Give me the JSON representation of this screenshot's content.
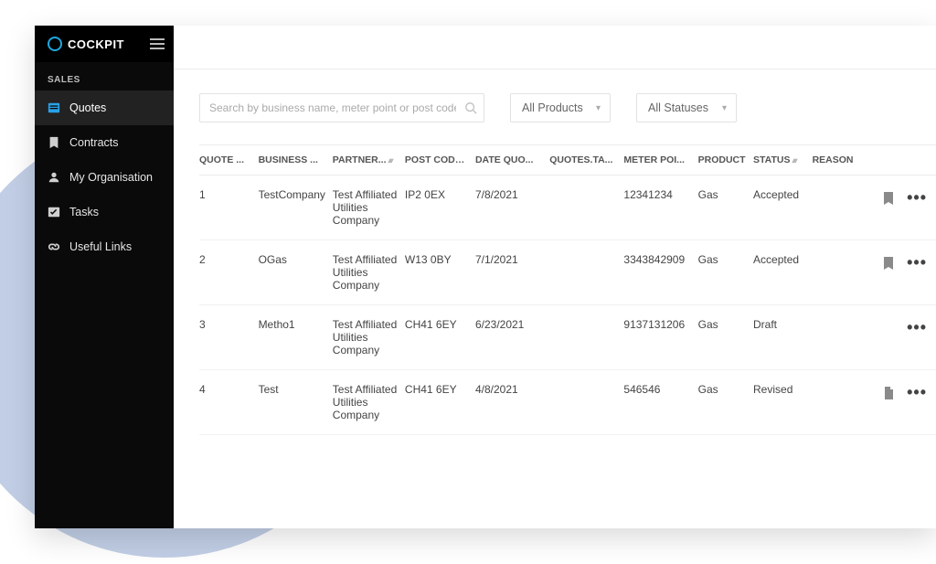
{
  "brand": {
    "name": "COCKPIT"
  },
  "sidebar": {
    "section": "SALES",
    "items": [
      {
        "label": "Quotes"
      },
      {
        "label": "Contracts"
      },
      {
        "label": "My Organisation"
      },
      {
        "label": "Tasks"
      },
      {
        "label": "Useful Links"
      }
    ]
  },
  "filters": {
    "search_placeholder": "Search by business name, meter point or post code",
    "product_selected": "All Products",
    "status_selected": "All Statuses"
  },
  "table": {
    "columns": [
      "QUOTE ...",
      "BUSINESS ...",
      "PARTNER...",
      "POST CODE...",
      "DATE QUO...",
      "QUOTES.TA...",
      "METER POI...",
      "PRODUCT",
      "STATUS",
      "REASON"
    ],
    "rows": [
      {
        "quote": "1",
        "business": "TestCompany",
        "partner": "Test Affiliated Utilities Company",
        "postcode": "IP2 0EX",
        "date": "7/8/2021",
        "tags": "",
        "meter": "12341234",
        "product": "Gas",
        "status": "Accepted",
        "reason": "",
        "bookmark": true,
        "file": false
      },
      {
        "quote": "2",
        "business": "OGas",
        "partner": "Test Affiliated Utilities Company",
        "postcode": "W13 0BY",
        "date": "7/1/2021",
        "tags": "",
        "meter": "3343842909",
        "product": "Gas",
        "status": "Accepted",
        "reason": "",
        "bookmark": true,
        "file": false
      },
      {
        "quote": "3",
        "business": "Metho1",
        "partner": "Test Affiliated Utilities Company",
        "postcode": "CH41 6EY",
        "date": "6/23/2021",
        "tags": "",
        "meter": "9137131206",
        "product": "Gas",
        "status": "Draft",
        "reason": "",
        "bookmark": false,
        "file": false
      },
      {
        "quote": "4",
        "business": "Test",
        "partner": "Test Affiliated Utilities Company",
        "postcode": "CH41 6EY",
        "date": "4/8/2021",
        "tags": "",
        "meter": "546546",
        "product": "Gas",
        "status": "Revised",
        "reason": "",
        "bookmark": false,
        "file": true
      }
    ]
  },
  "colors": {
    "sidebar_bg": "#0a0a0a",
    "accent": "#1fa7e0",
    "border": "#eaeaea",
    "text": "#333333",
    "bg_circle": "#8ea6cf"
  }
}
